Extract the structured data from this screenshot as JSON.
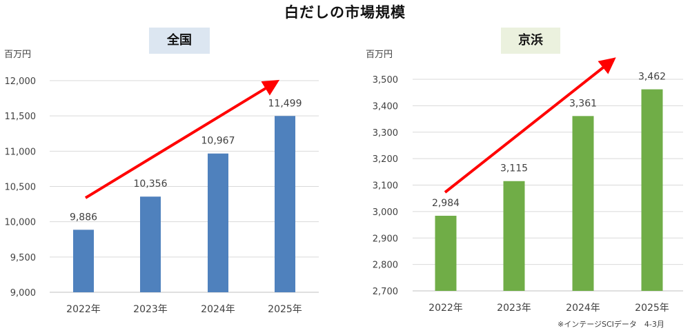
{
  "title": "白だしの市場規模",
  "source_note": "※インテージSCIデータ　4-3月",
  "colors": {
    "national_bar": "#4f81bd",
    "keihin_bar": "#70ad47",
    "arrow": "#ff0000",
    "grid": "#d9d9d9"
  },
  "chart_data": [
    {
      "type": "bar",
      "title": "全国",
      "unit": "百万円",
      "categories": [
        "2022年",
        "2023年",
        "2024年",
        "2025年"
      ],
      "values": [
        9886,
        10356,
        10967,
        11499
      ],
      "data_labels": [
        "9,886",
        "10,356",
        "10,967",
        "11,499"
      ],
      "ylim": [
        9000,
        12000
      ],
      "yticks": [
        9000,
        9500,
        10000,
        10500,
        11000,
        11500,
        12000
      ],
      "ytick_labels": [
        "9,000",
        "9,500",
        "10,000",
        "10,500",
        "11,000",
        "11,500",
        "12,000"
      ],
      "grid": true,
      "trend_arrow": true
    },
    {
      "type": "bar",
      "title": "京浜",
      "unit": "百万円",
      "categories": [
        "2022年",
        "2023年",
        "2024年",
        "2025年"
      ],
      "values": [
        2984,
        3115,
        3361,
        3462
      ],
      "data_labels": [
        "2,984",
        "3,115",
        "3,361",
        "3,462"
      ],
      "ylim": [
        2700,
        3500
      ],
      "yticks": [
        2700,
        2800,
        2900,
        3000,
        3100,
        3200,
        3300,
        3400,
        3500
      ],
      "ytick_labels": [
        "2,700",
        "2,800",
        "2,900",
        "3,000",
        "3,100",
        "3,200",
        "3,300",
        "3,400",
        "3,500"
      ],
      "grid": true,
      "trend_arrow": true
    }
  ]
}
